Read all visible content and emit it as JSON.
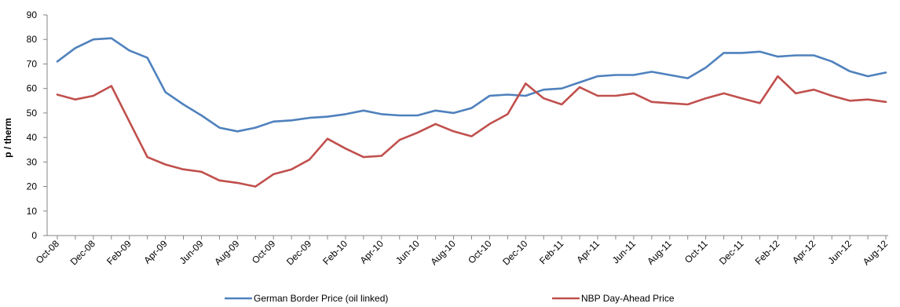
{
  "chart_data": {
    "type": "line",
    "title": "",
    "xlabel": "",
    "ylabel": "p / therm",
    "ylim": [
      0,
      90
    ],
    "y_ticks": [
      0,
      10,
      20,
      30,
      40,
      50,
      60,
      70,
      80,
      90
    ],
    "grid": false,
    "legend_position": "bottom",
    "x": [
      "Oct-08",
      "Nov-08",
      "Dec-08",
      "Jan-09",
      "Feb-09",
      "Mar-09",
      "Apr-09",
      "May-09",
      "Jun-09",
      "Jul-09",
      "Aug-09",
      "Sep-09",
      "Oct-09",
      "Nov-09",
      "Dec-09",
      "Jan-10",
      "Feb-10",
      "Mar-10",
      "Apr-10",
      "May-10",
      "Jun-10",
      "Jul-10",
      "Aug-10",
      "Sep-10",
      "Oct-10",
      "Nov-10",
      "Dec-10",
      "Jan-11",
      "Feb-11",
      "Mar-11",
      "Apr-11",
      "May-11",
      "Jun-11",
      "Jul-11",
      "Aug-11",
      "Sep-11",
      "Oct-11",
      "Nov-11",
      "Dec-11",
      "Jan-12",
      "Feb-12",
      "Mar-12",
      "Apr-12",
      "May-12",
      "Jun-12",
      "Jul-12",
      "Aug-12"
    ],
    "x_tick_labels": [
      "Oct-08",
      "Dec-08",
      "Feb-09",
      "Apr-09",
      "Jun-09",
      "Aug-09",
      "Oct-09",
      "Dec-09",
      "Feb-10",
      "Apr-10",
      "Jun-10",
      "Aug-10",
      "Oct-10",
      "Dec-10",
      "Feb-11",
      "Apr-11",
      "Jun-11",
      "Aug-11",
      "Oct-11",
      "Dec-11",
      "Feb-12",
      "Apr-12",
      "Jun-12",
      "Aug-12"
    ],
    "series": [
      {
        "name": "German Border Price (oil linked)",
        "color": "#4f81bd",
        "values": [
          71,
          76.5,
          80,
          80.5,
          75.5,
          72.5,
          58.5,
          53.5,
          49,
          44,
          42.5,
          44,
          46.5,
          47,
          48,
          48.5,
          49.5,
          51,
          49.5,
          49,
          49,
          51,
          50,
          52,
          57,
          57.5,
          57,
          59.5,
          60,
          62.5,
          65,
          65.5,
          65.5,
          66.8,
          65.5,
          64.2,
          68.5,
          74.5,
          74.5,
          75,
          73,
          73.5,
          73.5,
          71,
          67,
          65,
          66.5
        ]
      },
      {
        "name": "NBP Day-Ahead Price",
        "color": "#c0504d",
        "values": [
          57.5,
          55.5,
          57,
          61,
          46.5,
          32,
          29,
          27,
          26,
          22.5,
          21.5,
          20,
          25,
          27,
          31,
          39.5,
          35.5,
          32,
          32.5,
          39,
          42,
          45.5,
          42.5,
          40.5,
          45.5,
          49.5,
          62,
          56,
          53.5,
          60.5,
          57,
          57,
          58,
          54.5,
          54,
          53.5,
          56,
          58,
          56,
          54,
          65,
          58,
          59.5,
          57,
          55,
          55.5,
          54.5
        ]
      }
    ]
  }
}
